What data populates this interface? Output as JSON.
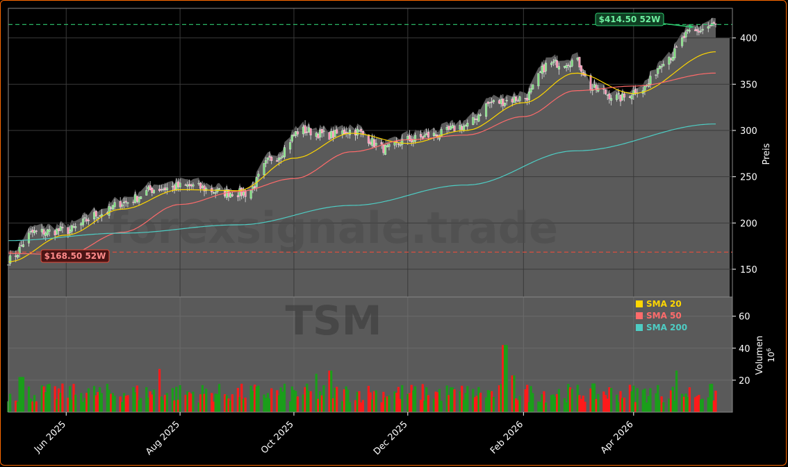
{
  "chart_data": [
    {
      "type": "candlestick",
      "ticker_watermark": "TSM",
      "watermark": "forexsignale.trade",
      "ylabel": "Preis",
      "ylim": [
        120,
        432
      ],
      "yticks": [
        150,
        200,
        250,
        300,
        350,
        400
      ],
      "xticks": [
        {
          "label": "Jun 2025",
          "date": "2025-06-01"
        },
        {
          "label": "Aug 2025",
          "date": "2025-08-01"
        },
        {
          "label": "Oct 2025",
          "date": "2025-10-01"
        },
        {
          "label": "Dec 2025",
          "date": "2025-12-01"
        },
        {
          "label": "Feb 2026",
          "date": "2026-02-01"
        },
        {
          "label": "Apr 2026",
          "date": "2026-04-01"
        }
      ],
      "x_range": [
        "2025-05-01",
        "2026-05-15"
      ],
      "high_52w": {
        "value": 414.5,
        "label": "$414.50 52W",
        "color": "#2ecc71"
      },
      "low_52w": {
        "value": 168.5,
        "label": "$168.50 52W",
        "color": "#e74c3c"
      },
      "price_keypoints": [
        {
          "date": "2025-05-01",
          "close": 160
        },
        {
          "date": "2025-05-15",
          "close": 190
        },
        {
          "date": "2025-06-01",
          "close": 192
        },
        {
          "date": "2025-06-20",
          "close": 210
        },
        {
          "date": "2025-07-01",
          "close": 222
        },
        {
          "date": "2025-07-20",
          "close": 237
        },
        {
          "date": "2025-08-05",
          "close": 240
        },
        {
          "date": "2025-08-25",
          "close": 233
        },
        {
          "date": "2025-09-05",
          "close": 232
        },
        {
          "date": "2025-09-20",
          "close": 270
        },
        {
          "date": "2025-10-05",
          "close": 300
        },
        {
          "date": "2025-10-20",
          "close": 295
        },
        {
          "date": "2025-11-01",
          "close": 300
        },
        {
          "date": "2025-11-20",
          "close": 280
        },
        {
          "date": "2025-12-01",
          "close": 290
        },
        {
          "date": "2025-12-15",
          "close": 295
        },
        {
          "date": "2026-01-01",
          "close": 305
        },
        {
          "date": "2026-01-15",
          "close": 330
        },
        {
          "date": "2026-02-01",
          "close": 335
        },
        {
          "date": "2026-02-15",
          "close": 372
        },
        {
          "date": "2026-03-01",
          "close": 375
        },
        {
          "date": "2026-03-10",
          "close": 345
        },
        {
          "date": "2026-03-25",
          "close": 335
        },
        {
          "date": "2026-04-05",
          "close": 345
        },
        {
          "date": "2026-04-20",
          "close": 380
        },
        {
          "date": "2026-05-01",
          "close": 405
        },
        {
          "date": "2026-05-15",
          "close": 414
        }
      ],
      "sma20_keypoints": [
        {
          "date": "2025-05-01",
          "value": 158
        },
        {
          "date": "2025-06-01",
          "value": 187
        },
        {
          "date": "2025-07-01",
          "value": 215
        },
        {
          "date": "2025-08-01",
          "value": 236
        },
        {
          "date": "2025-09-01",
          "value": 235
        },
        {
          "date": "2025-10-01",
          "value": 270
        },
        {
          "date": "2025-11-01",
          "value": 297
        },
        {
          "date": "2025-12-01",
          "value": 286
        },
        {
          "date": "2026-01-01",
          "value": 300
        },
        {
          "date": "2026-02-01",
          "value": 330
        },
        {
          "date": "2026-03-01",
          "value": 362
        },
        {
          "date": "2026-04-01",
          "value": 340
        },
        {
          "date": "2026-05-15",
          "value": 385
        }
      ],
      "sma50_keypoints": [
        {
          "date": "2025-05-01",
          "value": 167
        },
        {
          "date": "2025-06-01",
          "value": 166
        },
        {
          "date": "2025-07-01",
          "value": 190
        },
        {
          "date": "2025-08-01",
          "value": 220
        },
        {
          "date": "2025-09-01",
          "value": 234
        },
        {
          "date": "2025-10-01",
          "value": 248
        },
        {
          "date": "2025-11-01",
          "value": 277
        },
        {
          "date": "2025-12-01",
          "value": 290
        },
        {
          "date": "2026-01-01",
          "value": 295
        },
        {
          "date": "2026-02-01",
          "value": 315
        },
        {
          "date": "2026-03-01",
          "value": 343
        },
        {
          "date": "2026-04-01",
          "value": 348
        },
        {
          "date": "2026-05-15",
          "value": 362
        }
      ],
      "sma200_keypoints": [
        {
          "date": "2025-05-01",
          "value": 181
        },
        {
          "date": "2025-07-01",
          "value": 189
        },
        {
          "date": "2025-09-01",
          "value": 198
        },
        {
          "date": "2025-11-01",
          "value": 219
        },
        {
          "date": "2026-01-01",
          "value": 241
        },
        {
          "date": "2026-03-01",
          "value": 278
        },
        {
          "date": "2026-05-15",
          "value": 307
        }
      ],
      "legend": [
        {
          "name": "SMA 20",
          "color": "#ffd700"
        },
        {
          "name": "SMA 50",
          "color": "#ff6b6b"
        },
        {
          "name": "SMA 200",
          "color": "#4ecdc4"
        }
      ],
      "legend_placement": "top-right of volume panel",
      "grid": true
    },
    {
      "type": "bar",
      "ylabel": "Volumen",
      "yscale_label": "10",
      "yscale_exp": "6",
      "ylim": [
        0,
        72
      ],
      "yticks": [
        20,
        40,
        60
      ],
      "colors": {
        "up": "#1a9e1a",
        "down": "#ff1a1a"
      },
      "volume_keypoints": [
        {
          "date": "2025-05-08",
          "value": 22
        },
        {
          "date": "2025-07-20",
          "value": 27
        },
        {
          "date": "2025-10-12",
          "value": 24
        },
        {
          "date": "2025-10-20",
          "value": 26
        },
        {
          "date": "2026-01-22",
          "value": 42
        },
        {
          "date": "2026-01-26",
          "value": 23
        },
        {
          "date": "2026-04-25",
          "value": 26
        }
      ],
      "typical_range": [
        6,
        18
      ]
    }
  ]
}
